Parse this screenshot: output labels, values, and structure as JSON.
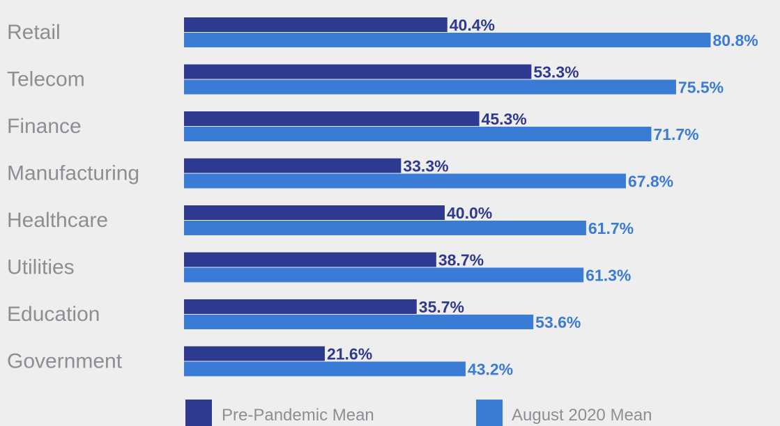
{
  "chart_data": {
    "type": "bar",
    "orientation": "horizontal",
    "categories": [
      "Retail",
      "Telecom",
      "Finance",
      "Manufacturing",
      "Healthcare",
      "Utilities",
      "Education",
      "Government"
    ],
    "series": [
      {
        "name": "Pre-Pandemic Mean",
        "color": "#2e3a8f",
        "values": [
          40.4,
          53.3,
          45.3,
          33.3,
          40.0,
          38.7,
          35.7,
          21.6
        ],
        "labels": [
          "40.4%",
          "53.3%",
          "45.3%",
          "33.3%",
          "40.0%",
          "38.7%",
          "35.7%",
          "21.6%"
        ]
      },
      {
        "name": "August 2020 Mean",
        "color": "#3a7bd5",
        "values": [
          80.8,
          75.5,
          71.7,
          67.8,
          61.7,
          61.3,
          53.6,
          43.2
        ],
        "labels": [
          "80.8%",
          "75.5%",
          "71.7%",
          "67.8%",
          "61.7%",
          "61.3%",
          "53.6%",
          "43.2%"
        ]
      }
    ],
    "xlim": [
      0,
      100
    ],
    "grid": false,
    "legend_position": "bottom"
  }
}
